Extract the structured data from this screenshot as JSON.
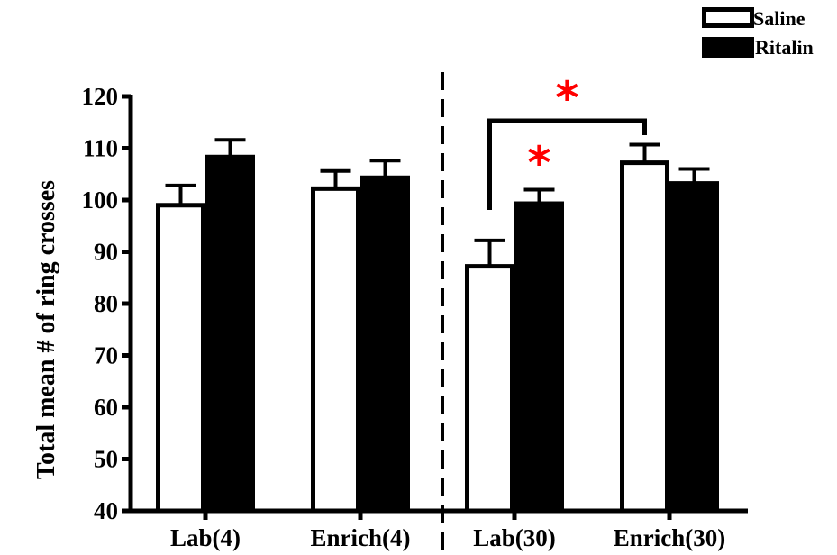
{
  "chart_data": {
    "type": "bar",
    "ylabel": "Total mean # of ring crosses",
    "xlabel": "",
    "ylim": [
      40,
      120
    ],
    "yticks": [
      40,
      50,
      60,
      70,
      80,
      90,
      100,
      110,
      120
    ],
    "categories": [
      "Lab(4)",
      "Enrich(4)",
      "Lab(30)",
      "Enrich(30)"
    ],
    "series": [
      {
        "name": "Saline",
        "values": [
          99,
          102.2,
          87.2,
          107.2
        ],
        "errors": [
          3.8,
          3.4,
          5,
          3.5
        ]
      },
      {
        "name": "Ritalin",
        "values": [
          108.3,
          104.3,
          99.3,
          103.2
        ],
        "errors": [
          3.3,
          3.3,
          2.7,
          2.8
        ]
      }
    ],
    "legend": {
      "position": "top-right",
      "entries": [
        "Saline",
        "Ritalin"
      ]
    },
    "grid": false,
    "divider": {
      "type": "dashed-vertical",
      "between": [
        "Enrich(4)",
        "Lab(30)"
      ]
    },
    "annotations": [
      {
        "text": "*",
        "type": "significance",
        "target": "Lab(30) Saline vs Lab(30) Ritalin"
      },
      {
        "text": "*",
        "type": "significance-bracket",
        "target": "Lab(30) Saline vs Enrich(30) Saline"
      }
    ],
    "colors": {
      "saline_fill": "#ffffff",
      "ritalin_fill": "#000000",
      "significance": "#ff0000"
    }
  }
}
